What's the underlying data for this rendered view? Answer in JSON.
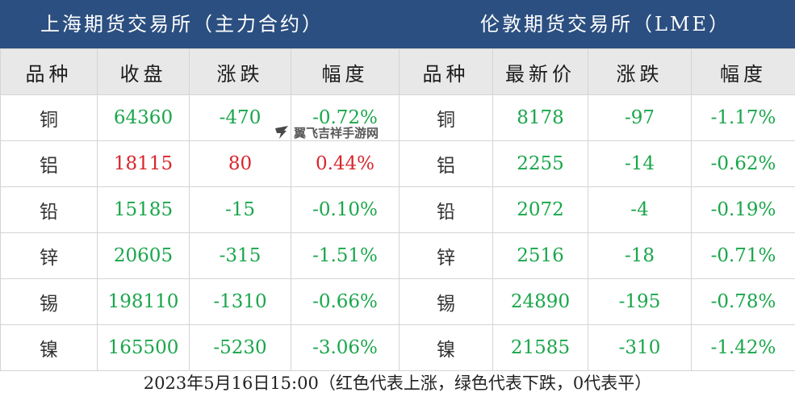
{
  "header": {
    "left_title": "上海期货交易所（主力合约）",
    "right_title": "伦敦期货交易所（LME）"
  },
  "columns": {
    "shfe": [
      "品种",
      "收盘",
      "涨跌",
      "幅度"
    ],
    "lme": [
      "品种",
      "最新价",
      "涨跌",
      "幅度"
    ]
  },
  "rows": [
    {
      "name": "铜",
      "shfe_close": "64360",
      "shfe_change": "-470",
      "shfe_pct": "-0.72%",
      "shfe_trend": "down",
      "lme_name": "铜",
      "lme_price": "8178",
      "lme_change": "-97",
      "lme_pct": "-1.17%",
      "lme_trend": "down"
    },
    {
      "name": "铝",
      "shfe_close": "18115",
      "shfe_change": "80",
      "shfe_pct": "0.44%",
      "shfe_trend": "up",
      "lme_name": "铝",
      "lme_price": "2255",
      "lme_change": "-14",
      "lme_pct": "-0.62%",
      "lme_trend": "down"
    },
    {
      "name": "铅",
      "shfe_close": "15185",
      "shfe_change": "-15",
      "shfe_pct": "-0.10%",
      "shfe_trend": "down",
      "lme_name": "铅",
      "lme_price": "2072",
      "lme_change": "-4",
      "lme_pct": "-0.19%",
      "lme_trend": "down"
    },
    {
      "name": "锌",
      "shfe_close": "20605",
      "shfe_change": "-315",
      "shfe_pct": "-1.51%",
      "shfe_trend": "down",
      "lme_name": "锌",
      "lme_price": "2516",
      "lme_change": "-18",
      "lme_pct": "-0.71%",
      "lme_trend": "down"
    },
    {
      "name": "锡",
      "shfe_close": "198110",
      "shfe_change": "-1310",
      "shfe_pct": "-0.66%",
      "shfe_trend": "down",
      "lme_name": "锡",
      "lme_price": "24890",
      "lme_change": "-195",
      "lme_pct": "-0.78%",
      "lme_trend": "down"
    },
    {
      "name": "镍",
      "shfe_close": "165500",
      "shfe_change": "-5230",
      "shfe_pct": "-3.06%",
      "shfe_trend": "down",
      "lme_name": "镍",
      "lme_price": "21585",
      "lme_change": "-310",
      "lme_pct": "-1.42%",
      "lme_trend": "down"
    }
  ],
  "footer": {
    "note": "2023年5月16日15:00（红色代表上涨，绿色代表下跌，0代表平）"
  },
  "watermark": {
    "text": "翼飞吉祥手游网"
  },
  "colors": {
    "up": "#d9262c",
    "down": "#1aa64b",
    "header_bg": "#2b4f80"
  }
}
